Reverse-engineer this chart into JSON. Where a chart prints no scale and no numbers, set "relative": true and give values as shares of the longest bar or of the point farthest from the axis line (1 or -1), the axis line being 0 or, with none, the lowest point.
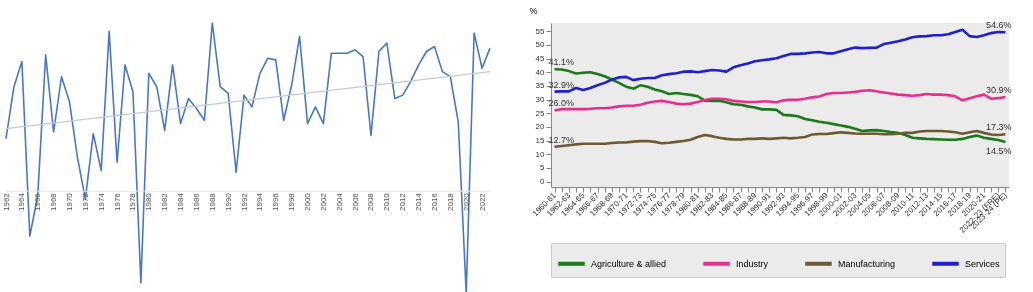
{
  "chart_data": [
    {
      "type": "line",
      "relative": true,
      "tick_labels": "x",
      "x": [
        1962,
        1963,
        1964,
        1965,
        1966,
        1967,
        1968,
        1969,
        1970,
        1971,
        1972,
        1973,
        1974,
        1975,
        1976,
        1977,
        1978,
        1979,
        1980,
        1981,
        1982,
        1983,
        1984,
        1985,
        1986,
        1987,
        1988,
        1989,
        1990,
        1991,
        1992,
        1993,
        1994,
        1995,
        1996,
        1997,
        1998,
        1999,
        2000,
        2001,
        2002,
        2003,
        2004,
        2005,
        2006,
        2007,
        2008,
        2009,
        2010,
        2011,
        2012,
        2013,
        2014,
        2015,
        2016,
        2017,
        2018,
        2019,
        2020,
        2021,
        2022,
        2023
      ],
      "xlim": [
        1962,
        2023
      ],
      "xticks": [
        1962,
        1964,
        1966,
        1968,
        1970,
        1972,
        1974,
        1976,
        1978,
        1980,
        1982,
        1984,
        1986,
        1988,
        1990,
        1992,
        1994,
        1996,
        1998,
        2000,
        2002,
        2004,
        2006,
        2008,
        2010,
        2012,
        2014,
        2016,
        2018,
        2020,
        2022
      ],
      "series": [
        {
          "color": "#4a78c0",
          "values": [
            0.31,
            0.62,
            0.77,
            -0.27,
            -0.03,
            0.81,
            0.35,
            0.68,
            0.53,
            0.2,
            -0.05,
            0.34,
            0.12,
            0.95,
            0.17,
            0.75,
            0.59,
            -0.55,
            0.7,
            0.62,
            0.36,
            0.75,
            0.4,
            0.55,
            0.49,
            0.42,
            1,
            0.62,
            0.58,
            0.11,
            0.57,
            0.5,
            0.7,
            0.79,
            0.78,
            0.42,
            0.63,
            0.92,
            0.4,
            0.5,
            0.4,
            0.82,
            0.82,
            0.82,
            0.84,
            0.8,
            0.33,
            0.83,
            0.88,
            0.55,
            0.57,
            0.65,
            0.75,
            0.83,
            0.86,
            0.71,
            0.68,
            0.41,
            -0.61,
            0.94,
            0.73,
            0.85
          ]
        },
        {
          "type": "line",
          "color": "#c3cad8",
          "x": [
            1962,
            2023
          ],
          "values": [
            0.37,
            0.71
          ]
        }
      ]
    },
    {
      "type": "line",
      "ylabel": "%",
      "legend": "bottom",
      "categories": [
        "1960-61",
        null,
        "1962-63",
        null,
        "1964-65",
        null,
        "1966-67",
        null,
        "1968-69",
        null,
        "1970-71",
        null,
        "1972-73",
        null,
        "1974-75",
        null,
        "1976-77",
        null,
        "1978-79",
        null,
        "1980-81",
        null,
        "1982-83",
        null,
        "1984-85",
        null,
        "1986-87",
        null,
        "1988-89",
        null,
        "1990-91",
        null,
        "1992-93",
        null,
        "1994-95",
        null,
        "1996-97",
        null,
        "1998-99",
        null,
        "2000-01",
        null,
        "2002-03",
        null,
        "2004-05",
        null,
        "2006-07",
        null,
        "2008-09",
        null,
        "2010-11",
        null,
        "2012-13",
        null,
        "2014-15",
        null,
        "2016-17",
        null,
        "2018-19",
        null,
        "2020-21",
        null,
        "2022-23 (FRE)",
        "2023-24 (PE)"
      ],
      "ylim": [
        -2,
        58
      ],
      "yticks": [
        0,
        5,
        10,
        15,
        20,
        25,
        30,
        35,
        40,
        45,
        50,
        55
      ],
      "series": [
        {
          "name": "Agriculture & allied",
          "color": "#1a7a1a",
          "values": [
            41.1,
            41.0,
            40.4,
            39.5,
            39.8,
            40.0,
            39.3,
            38.5,
            37.3,
            36.1,
            34.7,
            34.0,
            35.2,
            34.7,
            33.7,
            33.0,
            32.0,
            32.4,
            32.0,
            31.7,
            31.2,
            29.6,
            29.5,
            29.6,
            29.0,
            28.3,
            28.1,
            27.5,
            27.1,
            26.4,
            26.4,
            26.2,
            24.4,
            24.2,
            23.9,
            22.9,
            22.4,
            21.9,
            21.5,
            21.0,
            20.5,
            20.0,
            19.3,
            18.5,
            18.7,
            18.8,
            18.5,
            18.1,
            17.8,
            17.0,
            16.0,
            15.8,
            15.6,
            15.5,
            15.4,
            15.3,
            15.3,
            15.6,
            16.3,
            16.8,
            16.0,
            15.6,
            15.2,
            14.5
          ],
          "value_labels": [
            "41.1%",
            null,
            null,
            null,
            null,
            null,
            null,
            null,
            null,
            null,
            null,
            null,
            null,
            null,
            null,
            null,
            null,
            null,
            null,
            null,
            null,
            null,
            null,
            null,
            null,
            null,
            null,
            null,
            null,
            null,
            null,
            null,
            null,
            null,
            null,
            null,
            null,
            null,
            null,
            null,
            null,
            null,
            null,
            null,
            null,
            null,
            null,
            null,
            null,
            null,
            null,
            null,
            null,
            null,
            null,
            null,
            null,
            null,
            null,
            null,
            null,
            null,
            null,
            "14.5%"
          ]
        },
        {
          "name": "Industry",
          "color": "#e6318c",
          "values": [
            26.0,
            26.5,
            26.5,
            26.5,
            26.5,
            26.6,
            26.8,
            26.8,
            27.1,
            27.5,
            27.7,
            27.7,
            28.1,
            28.8,
            29.3,
            29.5,
            29.1,
            28.5,
            28.3,
            28.5,
            29.1,
            29.8,
            30.3,
            30.3,
            30.1,
            29.5,
            29.3,
            29.1,
            29.1,
            29.3,
            29.3,
            29.0,
            29.7,
            29.9,
            29.9,
            30.3,
            30.8,
            31.1,
            32.0,
            32.4,
            32.4,
            32.6,
            32.8,
            33.2,
            33.4,
            33.0,
            32.6,
            32.2,
            31.8,
            31.6,
            31.4,
            31.6,
            32.0,
            31.8,
            31.8,
            31.6,
            31.2,
            29.7,
            30.5,
            31.2,
            31.8,
            30.3,
            30.5,
            30.9
          ],
          "value_labels": [
            "26.0%",
            null,
            null,
            null,
            null,
            null,
            null,
            null,
            null,
            null,
            null,
            null,
            null,
            null,
            null,
            null,
            null,
            null,
            null,
            null,
            null,
            null,
            null,
            null,
            null,
            null,
            null,
            null,
            null,
            null,
            null,
            null,
            null,
            null,
            null,
            null,
            null,
            null,
            null,
            null,
            null,
            null,
            null,
            null,
            null,
            null,
            null,
            null,
            null,
            null,
            null,
            null,
            null,
            null,
            null,
            null,
            null,
            null,
            null,
            null,
            null,
            null,
            null,
            "30.9%"
          ]
        },
        {
          "name": "Manufacturing",
          "color": "#6b5a32",
          "values": [
            12.7,
            13.0,
            13.3,
            13.6,
            13.8,
            13.8,
            13.8,
            13.8,
            14.1,
            14.3,
            14.3,
            14.6,
            14.8,
            14.8,
            14.5,
            14.0,
            14.2,
            14.5,
            14.8,
            15.3,
            16.3,
            17.0,
            16.6,
            16.0,
            15.6,
            15.4,
            15.4,
            15.6,
            15.6,
            15.8,
            15.6,
            15.8,
            16.0,
            15.8,
            16.0,
            16.3,
            17.2,
            17.4,
            17.4,
            17.7,
            18.0,
            17.8,
            17.6,
            17.5,
            17.5,
            17.5,
            17.3,
            17.3,
            17.5,
            17.8,
            17.8,
            18.3,
            18.5,
            18.5,
            18.5,
            18.3,
            18.0,
            17.5,
            18.0,
            18.5,
            17.8,
            17.2,
            17.0,
            17.3
          ],
          "value_labels": [
            "12.7%",
            null,
            null,
            null,
            null,
            null,
            null,
            null,
            null,
            null,
            null,
            null,
            null,
            null,
            null,
            null,
            null,
            null,
            null,
            null,
            null,
            null,
            null,
            null,
            null,
            null,
            null,
            null,
            null,
            null,
            null,
            null,
            null,
            null,
            null,
            null,
            null,
            null,
            null,
            null,
            null,
            null,
            null,
            null,
            null,
            null,
            null,
            null,
            null,
            null,
            null,
            null,
            null,
            null,
            null,
            null,
            null,
            null,
            null,
            null,
            null,
            null,
            null,
            "17.3%"
          ]
        },
        {
          "name": "Services",
          "color": "#1f1fd0",
          "values": [
            32.9,
            33.0,
            33.0,
            34.2,
            33.5,
            34.2,
            35.2,
            36.1,
            37.3,
            38.1,
            38.3,
            37.1,
            37.6,
            37.9,
            37.9,
            38.9,
            39.3,
            39.6,
            40.2,
            40.3,
            40.0,
            40.4,
            40.8,
            40.6,
            40.2,
            41.8,
            42.5,
            43.2,
            44.0,
            44.4,
            44.7,
            45.1,
            45.9,
            46.7,
            46.7,
            46.9,
            47.2,
            47.4,
            46.9,
            46.9,
            47.7,
            48.4,
            49.0,
            48.8,
            48.9,
            49.0,
            50.3,
            50.8,
            51.3,
            52.0,
            52.8,
            53.1,
            53.2,
            53.5,
            53.5,
            53.9,
            54.7,
            55.5,
            53.2,
            52.9,
            53.5,
            54.3,
            54.7,
            54.6
          ],
          "value_labels": [
            "32.9%",
            null,
            null,
            null,
            null,
            null,
            null,
            null,
            null,
            null,
            null,
            null,
            null,
            null,
            null,
            null,
            null,
            null,
            null,
            null,
            null,
            null,
            null,
            null,
            null,
            null,
            null,
            null,
            null,
            null,
            null,
            null,
            null,
            null,
            null,
            null,
            null,
            null,
            null,
            null,
            null,
            null,
            null,
            null,
            null,
            null,
            null,
            null,
            null,
            null,
            null,
            null,
            null,
            null,
            null,
            null,
            null,
            null,
            null,
            null,
            null,
            null,
            null,
            "54.6%"
          ]
        }
      ]
    }
  ]
}
